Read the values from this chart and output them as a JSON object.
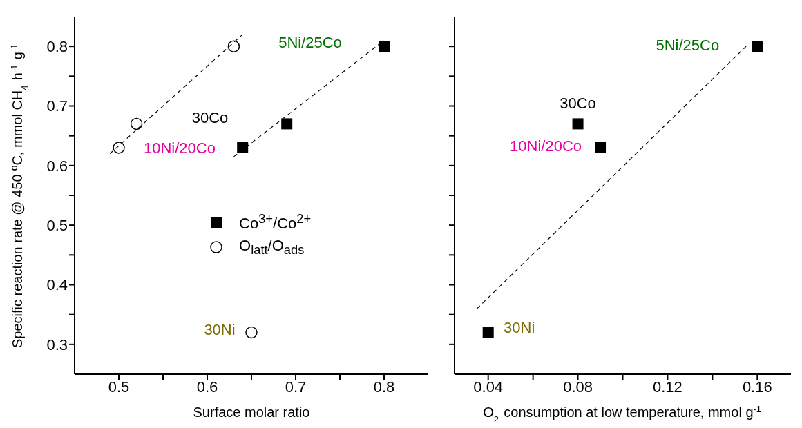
{
  "chart_data": [
    {
      "type": "scatter",
      "xlabel": "Surface molar ratio",
      "ylabel": "Specific reaction rate @ 450 ºC, mmol CH$_{4}$ h$^{-1}$ g$^{-1}$",
      "xlim": [
        0.45,
        0.85
      ],
      "xticks": [
        0.5,
        {
          "value": 0.55,
          "label": null
        },
        0.6,
        {
          "value": 0.65,
          "label": null
        },
        0.7,
        {
          "value": 0.75,
          "label": null
        },
        0.8
      ],
      "ylim": [
        0.25,
        0.85
      ],
      "yticks": [
        0.3,
        {
          "value": 0.35,
          "label": null
        },
        0.4,
        {
          "value": 0.45,
          "label": null
        },
        0.5,
        {
          "value": 0.55,
          "label": null
        },
        0.6,
        {
          "value": 0.65,
          "label": null
        },
        0.7,
        {
          "value": 0.75,
          "label": null
        },
        0.8
      ],
      "legend": "center",
      "grid": false,
      "series": [
        {
          "name": "Co$^{3+}$/Co$^{2+}$",
          "type": "scatter",
          "marker": "square",
          "color": "#000000",
          "x": [
            0.64,
            0.69,
            0.8
          ],
          "values": [
            0.63,
            0.67,
            0.8
          ]
        },
        {
          "name": "O$_{latt}$/O$_{ads}$",
          "type": "scatter",
          "marker": "circle",
          "color": "#000000",
          "x": [
            0.5,
            0.52,
            0.63,
            0.65
          ],
          "values": [
            0.63,
            0.67,
            0.8,
            0.32
          ]
        },
        {
          "type": "line",
          "marker": "none",
          "line_style": "dashed",
          "color": "#000000",
          "x": [
            0.49,
            0.64
          ],
          "values": [
            0.62,
            0.82
          ]
        },
        {
          "type": "line",
          "marker": "none",
          "line_style": "dashed",
          "color": "#000000",
          "x": [
            0.63,
            0.8
          ],
          "values": [
            0.615,
            0.81
          ]
        }
      ],
      "annotations": [
        {
          "text": "5Ni/25Co",
          "x": 0.8,
          "y": 0.8
        },
        "30Co",
        {
          "text": "10Ni/20Co",
          "x": 0.5,
          "y": 0.63
        },
        {
          "text": "30Ni",
          "x": 0.65,
          "y": 0.32
        }
      ]
    },
    {
      "type": "scatter",
      "xlabel": "O$_{2}$ consumption at low temperature, mmol g$^{-1}$",
      "xlim": [
        0.025,
        0.175
      ],
      "xticks": [
        0.04,
        {
          "value": 0.06,
          "label": null
        },
        0.08,
        {
          "value": 0.1,
          "label": null
        },
        0.12,
        {
          "value": 0.14,
          "label": null
        },
        0.16
      ],
      "ylim": [
        0.25,
        0.85
      ],
      "yticks": [
        0.3,
        {
          "value": 0.35,
          "label": null
        },
        0.4,
        {
          "value": 0.45,
          "label": null
        },
        0.5,
        {
          "value": 0.55,
          "label": null
        },
        0.6,
        {
          "value": 0.65,
          "label": null
        },
        0.7,
        {
          "value": 0.75,
          "label": null
        },
        0.8
      ],
      "tick_labels": "x",
      "grid": false,
      "series": [
        {
          "type": "scatter",
          "marker": "square",
          "color": "#000000",
          "x": [
            0.04,
            0.08,
            0.09,
            0.16
          ],
          "values": [
            0.32,
            0.67,
            0.63,
            0.8
          ]
        },
        {
          "type": "line",
          "marker": "none",
          "line_style": "dashed",
          "color": "#000000",
          "x": [
            0.035,
            0.155
          ],
          "values": [
            0.36,
            0.8
          ]
        }
      ],
      "annotations": [
        {
          "text": "5Ni/25Co",
          "x": 0.16,
          "y": 0.8
        },
        {
          "text": "30Co",
          "x": 0.08,
          "y": 0.67
        },
        {
          "text": "10Ni/20Co",
          "x": 0.09,
          "y": 0.63
        },
        {
          "text": "30Ni",
          "x": 0.04,
          "y": 0.32
        }
      ]
    }
  ]
}
